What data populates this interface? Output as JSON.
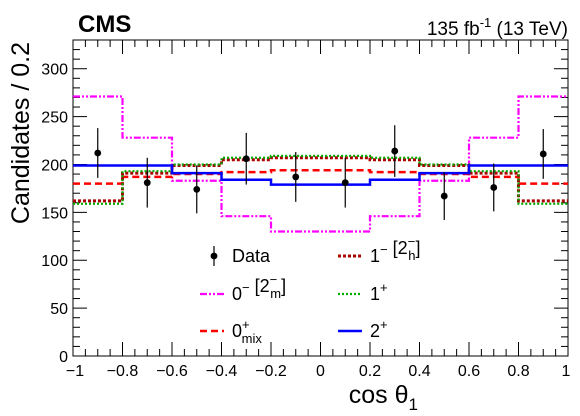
{
  "header": {
    "experiment": "CMS",
    "lumi_value": "135 fb",
    "lumi_exp": "-1",
    "lumi_energy": " (13 TeV)"
  },
  "chart_data": {
    "type": "line",
    "xlabel": "cos θ",
    "xlabel_sub": "1",
    "ylabel": "Candidates / 0.2",
    "xlim": [
      -1,
      1
    ],
    "ylim": [
      0,
      330
    ],
    "xticks": [
      -1,
      -0.8,
      -0.6,
      -0.4,
      -0.2,
      0,
      0.2,
      0.4,
      0.6,
      0.8,
      1
    ],
    "xtick_labels": [
      "−1",
      "−0.8",
      "−0.6",
      "−0.4",
      "−0.2",
      "0",
      "0.2",
      "0.4",
      "0.6",
      "0.8",
      "1"
    ],
    "yticks": [
      0,
      50,
      100,
      150,
      200,
      250,
      300
    ],
    "grid": false,
    "bin_edges": [
      -1,
      -0.8,
      -0.6,
      -0.4,
      -0.2,
      0,
      0.2,
      0.4,
      0.6,
      0.8,
      1
    ],
    "data": {
      "label": "Data",
      "x": [
        -0.9,
        -0.7,
        -0.5,
        -0.3,
        -0.1,
        0.1,
        0.3,
        0.5,
        0.7,
        0.9
      ],
      "y": [
        212,
        181,
        174,
        206,
        187,
        181,
        214,
        167,
        176,
        211
      ],
      "err": [
        26,
        26,
        25,
        27,
        26,
        26,
        27,
        25,
        25,
        26
      ]
    },
    "series": [
      {
        "id": "s-0m",
        "color": "#ff00ff",
        "dash": "7 2 2 2 2 2",
        "width": 2.2,
        "values": [
          271,
          228,
          183,
          146,
          130,
          130,
          146,
          183,
          228,
          271
        ]
      },
      {
        "id": "s-0mix",
        "color": "#ff0000",
        "dash": "7 4",
        "width": 2.5,
        "values": [
          180,
          187,
          190,
          192,
          194,
          194,
          192,
          190,
          187,
          180
        ]
      },
      {
        "id": "s-1m",
        "color": "#aa0000",
        "dash": "3 2",
        "width": 3,
        "values": [
          162,
          191,
          199,
          205,
          207,
          207,
          205,
          199,
          191,
          162
        ]
      },
      {
        "id": "s-1p",
        "color": "#00aa00",
        "dash": "2 2",
        "width": 2.2,
        "values": [
          159,
          193,
          200,
          207,
          209,
          209,
          207,
          200,
          193,
          159
        ]
      },
      {
        "id": "s-2p",
        "color": "#0000ff",
        "dash": "",
        "width": 2.5,
        "values": [
          199,
          199,
          191,
          184,
          179,
          179,
          184,
          191,
          199,
          199
        ]
      }
    ],
    "legend": {
      "placement": "bottom-center",
      "entries": [
        {
          "id": "data",
          "text": "Data",
          "sup": "",
          "sub": "",
          "rest": ""
        },
        {
          "id": "s-1m",
          "text": "1",
          "sup": "−",
          "sub": "",
          "rest": " [2",
          "rest_sup": "−",
          "rest_sub": "h",
          "close": "]"
        },
        {
          "id": "s-0m",
          "text": "0",
          "sup": "−",
          "sub": "",
          "rest": " [2",
          "rest_sup": "−",
          "rest_sub": "m",
          "close": "]"
        },
        {
          "id": "s-1p",
          "text": "1",
          "sup": "+",
          "sub": "",
          "rest": ""
        },
        {
          "id": "s-0mix",
          "text": "0",
          "sup": "+",
          "sub": "mix",
          "rest": ""
        },
        {
          "id": "s-2p",
          "text": "2",
          "sup": "+",
          "sub": "",
          "rest": ""
        }
      ]
    }
  }
}
